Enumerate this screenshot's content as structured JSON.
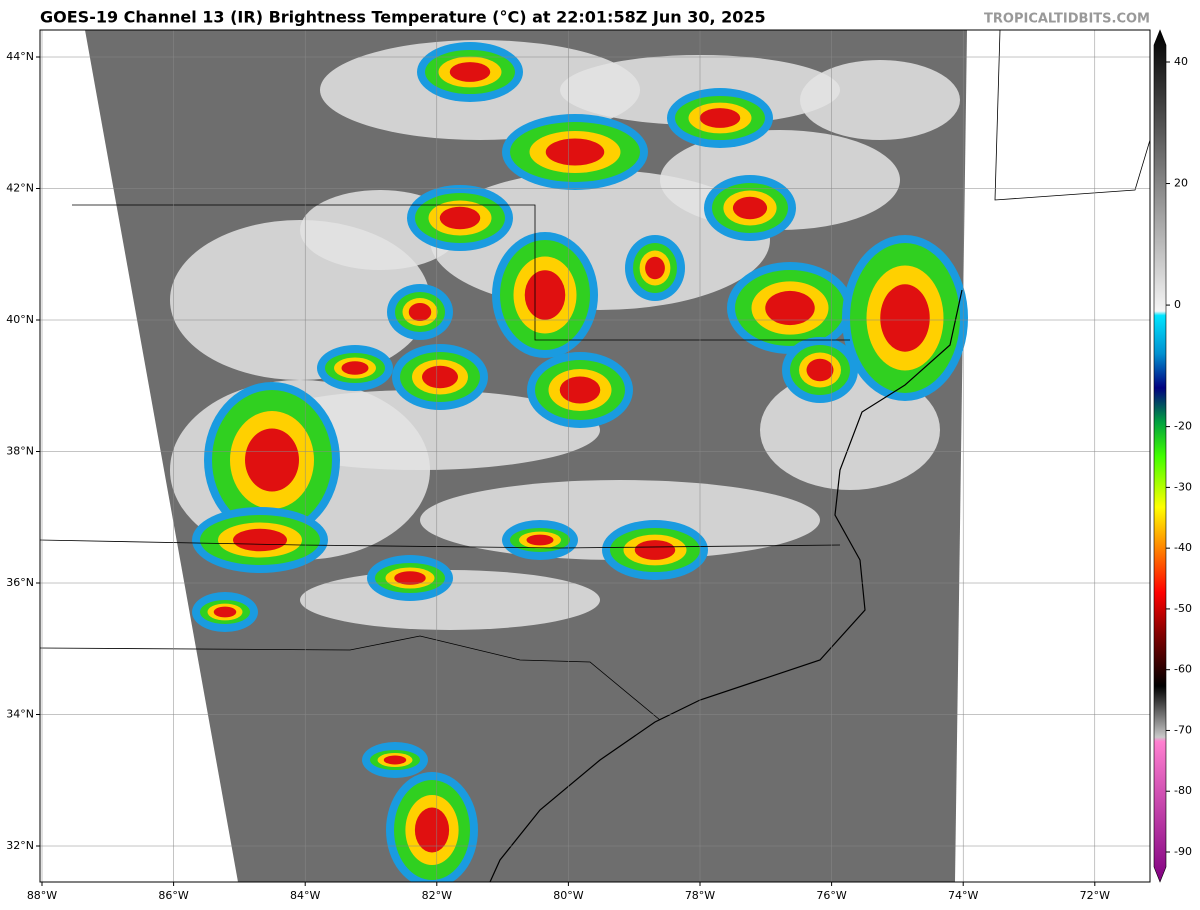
{
  "header": {
    "title": "GOES-19 Channel 13 (IR) Brightness Temperature (°C) at 22:01:58Z Jun 30, 2025",
    "source": "TROPICALTIDBITS.COM"
  },
  "map": {
    "lat_ticks": [
      {
        "value": 44,
        "label": "44°N"
      },
      {
        "value": 42,
        "label": "42°N"
      },
      {
        "value": 40,
        "label": "40°N"
      },
      {
        "value": 38,
        "label": "38°N"
      },
      {
        "value": 36,
        "label": "36°N"
      },
      {
        "value": 34,
        "label": "34°N"
      },
      {
        "value": 32,
        "label": "32°N"
      }
    ],
    "lon_ticks": [
      {
        "value": -88,
        "label": "88°W"
      },
      {
        "value": -86,
        "label": "86°W"
      },
      {
        "value": -84,
        "label": "84°W"
      },
      {
        "value": -82,
        "label": "82°W"
      },
      {
        "value": -80,
        "label": "80°W"
      },
      {
        "value": -78,
        "label": "78°W"
      },
      {
        "value": -76,
        "label": "76°W"
      },
      {
        "value": -74,
        "label": "74°W"
      },
      {
        "value": -72,
        "label": "72°W"
      }
    ]
  },
  "colorbar": {
    "ticks": [
      40,
      20,
      0,
      -20,
      -30,
      -40,
      -50,
      -60,
      -70,
      -80,
      -90
    ]
  }
}
